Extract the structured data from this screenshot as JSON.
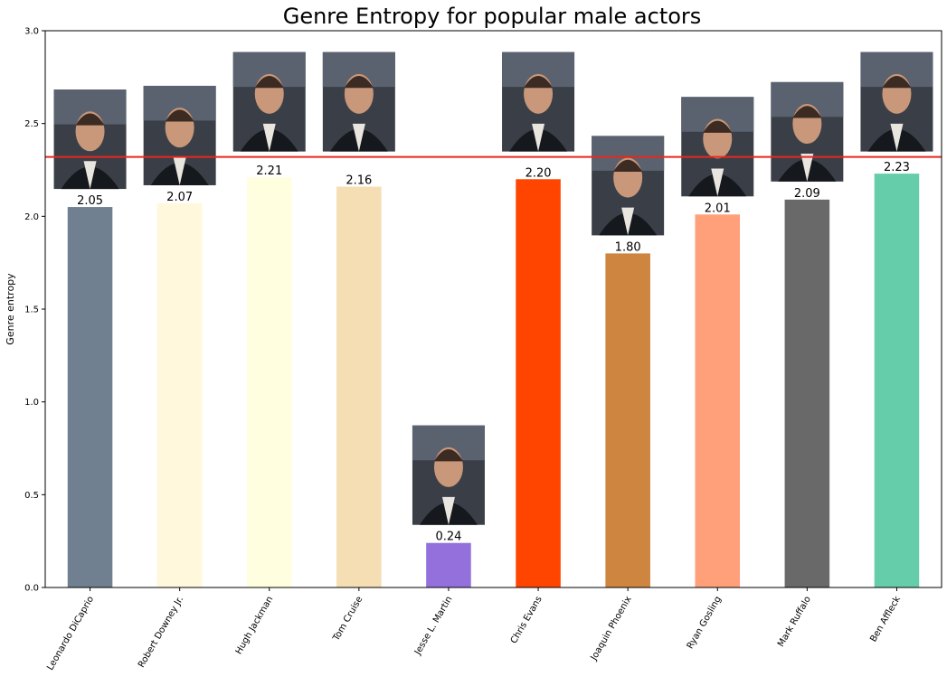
{
  "chart_data": {
    "type": "bar",
    "title": "Genre Entropy for popular male actors",
    "xlabel": "",
    "ylabel": "Genre entropy",
    "ylim": [
      0,
      3.0
    ],
    "yticks": [
      "0.0",
      "0.5",
      "1.0",
      "1.5",
      "2.0",
      "2.5",
      "3.0"
    ],
    "grid": false,
    "categories": [
      "Leonardo DiCaprio",
      "Robert Downey Jr.",
      "Hugh Jackman",
      "Tom Cruise",
      "Jesse L. Martin",
      "Chris Evans",
      "Joaquin Phoenix",
      "Ryan Gosling",
      "Mark Ruffalo",
      "Ben Affleck"
    ],
    "values": [
      2.05,
      2.07,
      2.21,
      2.16,
      0.24,
      2.2,
      1.8,
      2.01,
      2.09,
      2.23
    ],
    "value_labels": [
      "2.05",
      "2.07",
      "2.21",
      "2.16",
      "0.24",
      "2.20",
      "1.80",
      "2.01",
      "2.09",
      "2.23"
    ],
    "bar_colors": [
      "#708090",
      "#fff8dc",
      "#ffffe0",
      "#f5deb3",
      "#9370db",
      "#ff4500",
      "#cd853f",
      "#ffa07a",
      "#696969",
      "#66cdaa"
    ],
    "reference_line": {
      "y": 2.32,
      "color": "#e8281e"
    },
    "portrait_photos": true
  }
}
